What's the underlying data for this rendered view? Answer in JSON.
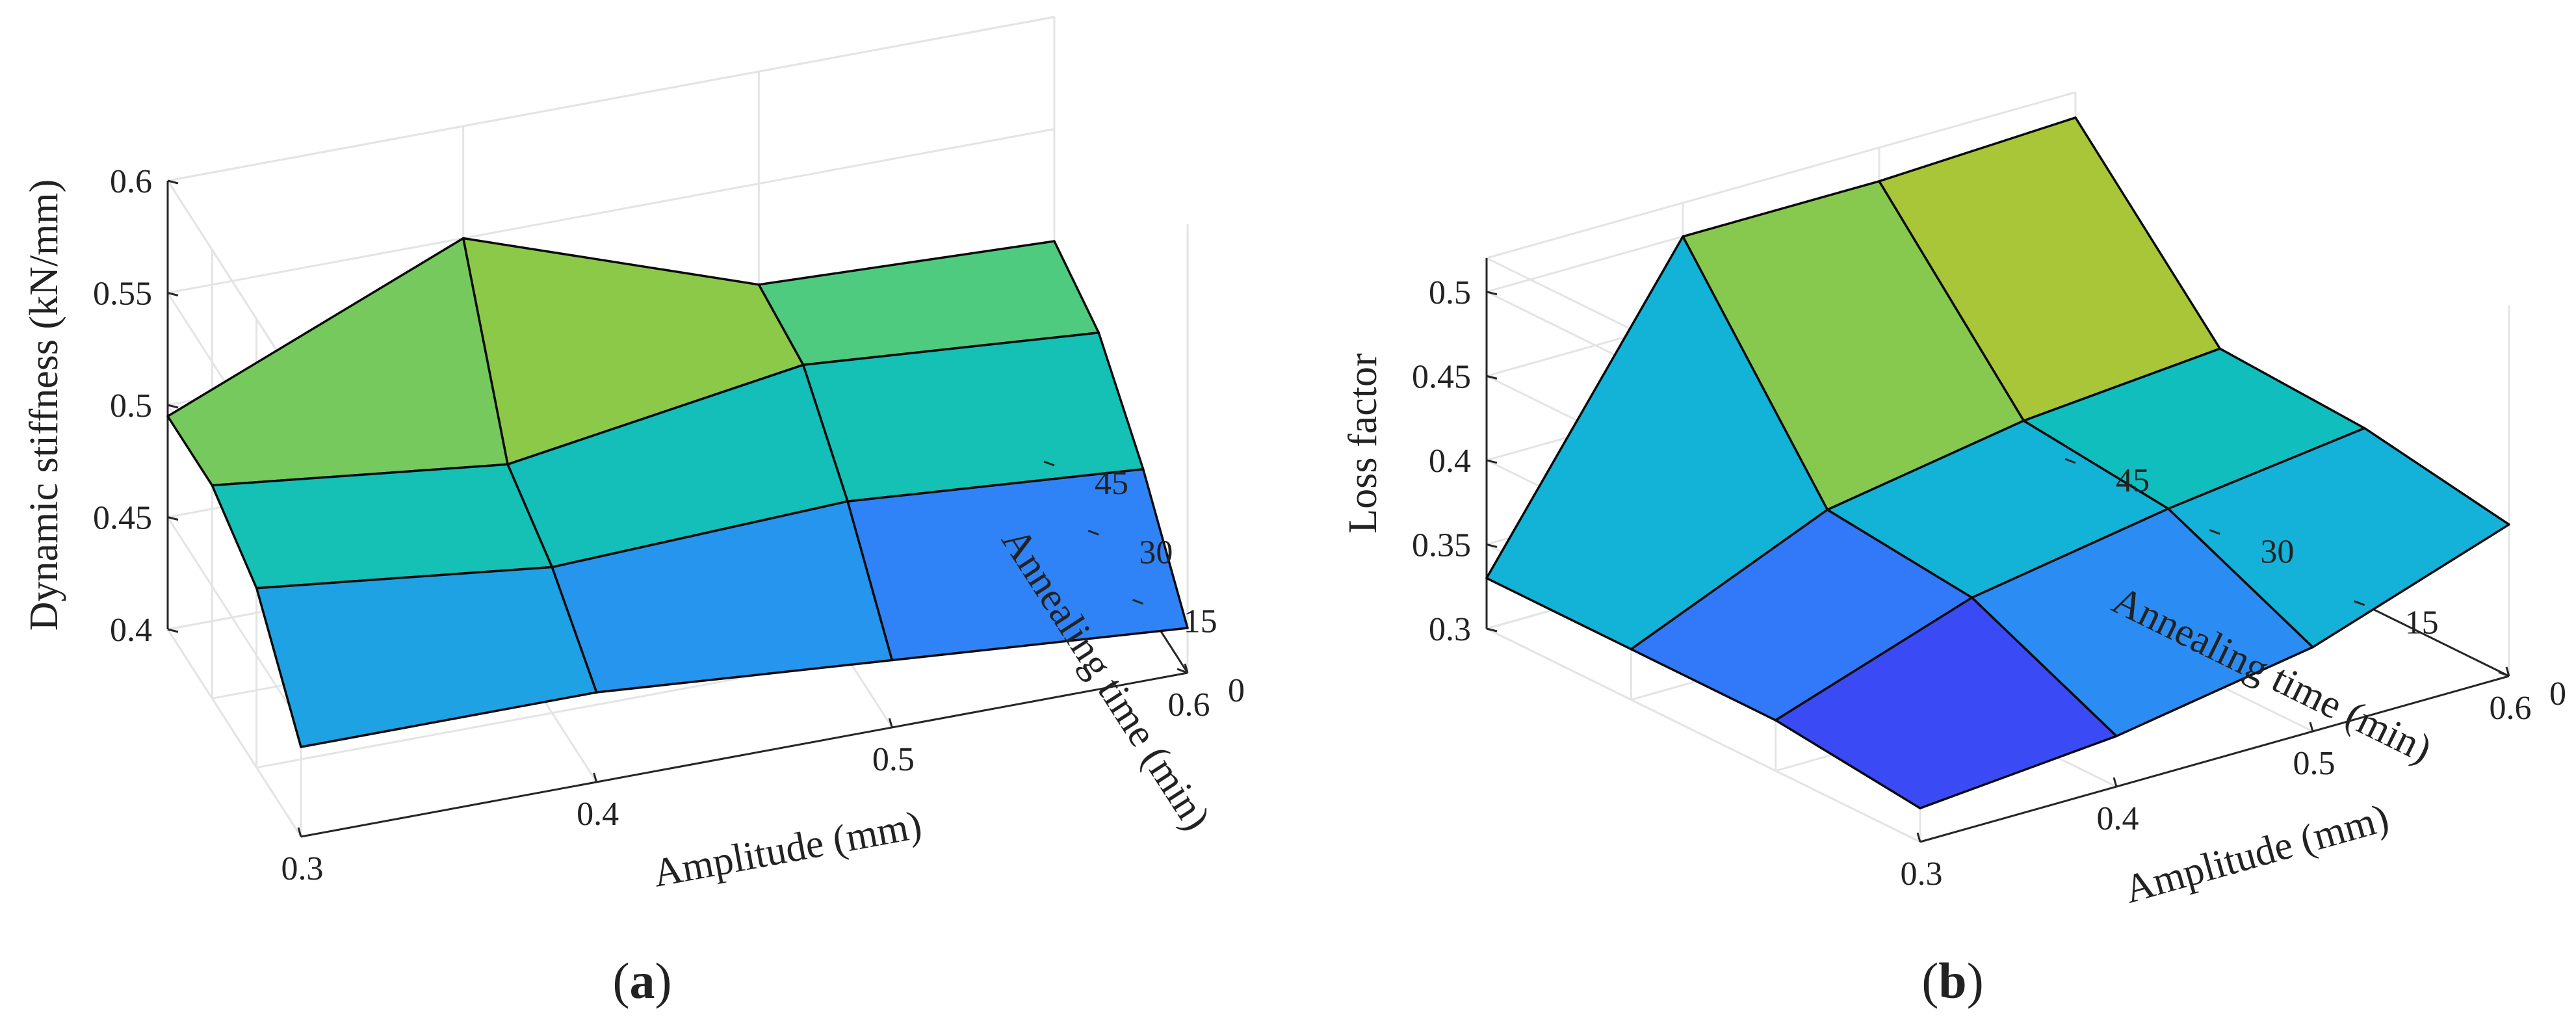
{
  "figure": {
    "caption_a": "a",
    "caption_b": "b"
  },
  "chart_data": [
    {
      "type": "surface3d",
      "panel": "a",
      "title": "",
      "xlabel": "Amplitude (mm)",
      "ylabel": "Annealing time (min)",
      "zlabel": "Dynamic stiffness (kN/mm)",
      "x": [
        0.3,
        0.4,
        0.5,
        0.6
      ],
      "y": [
        0,
        15,
        30,
        45
      ],
      "z": [
        [
          0.44,
          0.44,
          0.43,
          0.42
        ],
        [
          0.48,
          0.465,
          0.47,
          0.46
        ],
        [
          0.495,
          0.48,
          0.5,
          0.49
        ],
        [
          0.495,
          0.55,
          0.505,
          0.5
        ]
      ],
      "xlim": [
        0.3,
        0.6
      ],
      "ylim": [
        0,
        45
      ],
      "zlim": [
        0.4,
        0.6
      ],
      "x_ticks": [
        "0.3",
        "0.4",
        "0.5",
        "0.6"
      ],
      "y_ticks": [
        "0",
        "15",
        "30",
        "45"
      ],
      "z_ticks": [
        "0.4",
        "0.45",
        "0.5",
        "0.55",
        "0.6"
      ],
      "colormap": [
        "#3e26a8",
        "#3a4dfa",
        "#2e87f7",
        "#1aa9df",
        "#0cbccf",
        "#1ac2a3",
        "#4acb84",
        "#9bc93c",
        "#d6bb2a",
        "#f8d22c",
        "#f9fb15"
      ],
      "grid": true
    },
    {
      "type": "surface3d",
      "panel": "b",
      "title": "",
      "xlabel": "Amplitude (mm)",
      "ylabel": "Annealing time (min)",
      "zlabel": "Loss factor",
      "x": [
        0.3,
        0.4,
        0.5,
        0.6
      ],
      "y": [
        0,
        15,
        30,
        45
      ],
      "z": [
        [
          0.32,
          0.33,
          0.35,
          0.39
        ],
        [
          0.33,
          0.37,
          0.39,
          0.405
        ],
        [
          0.33,
          0.38,
          0.4,
          0.41
        ],
        [
          0.33,
          0.5,
          0.5,
          0.505
        ]
      ],
      "xlim": [
        0.3,
        0.6
      ],
      "ylim": [
        0,
        45
      ],
      "zlim": [
        0.3,
        0.52
      ],
      "x_ticks": [
        "0.3",
        "0.4",
        "0.5",
        "0.6"
      ],
      "y_ticks": [
        "0",
        "15",
        "30",
        "45"
      ],
      "z_ticks": [
        "0.3",
        "0.35",
        "0.4",
        "0.45",
        "0.5"
      ],
      "colormap": [
        "#3e26a8",
        "#3a4dfa",
        "#2e87f7",
        "#1aa9df",
        "#0cbccf",
        "#1ac2a3",
        "#4acb84",
        "#9bc93c",
        "#d6bb2a",
        "#f8d22c",
        "#f9fb15"
      ],
      "grid": true
    }
  ]
}
